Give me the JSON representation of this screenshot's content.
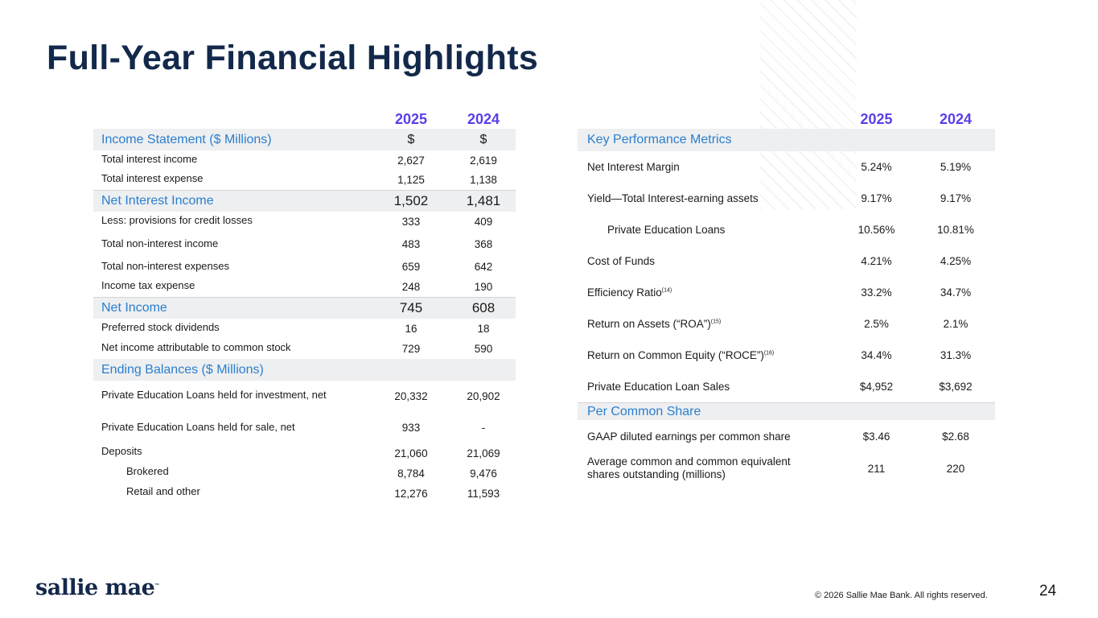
{
  "title": "Full-Year Financial Highlights",
  "years": [
    "2025",
    "2024"
  ],
  "income_statement": {
    "section_header": "Income Statement ($ Millions)",
    "currency": [
      "$",
      "$"
    ],
    "rows": [
      {
        "label": "Total interest income",
        "v2025": "2,627",
        "v2024": "2,619"
      },
      {
        "label": "Total interest expense",
        "v2025": "1,125",
        "v2024": "1,138"
      },
      {
        "label": "Net Interest Income",
        "v2025": "1,502",
        "v2024": "1,481"
      },
      {
        "label": "Less: provisions for credit losses",
        "v2025": "333",
        "v2024": "409"
      },
      {
        "label": "Total non-interest income",
        "v2025": "483",
        "v2024": "368"
      },
      {
        "label": "Total non-interest expenses",
        "v2025": "659",
        "v2024": "642"
      },
      {
        "label": "Income tax expense",
        "v2025": "248",
        "v2024": "190"
      },
      {
        "label": "Net Income",
        "v2025": "745",
        "v2024": "608"
      },
      {
        "label": "Preferred stock dividends",
        "v2025": "16",
        "v2024": "18"
      },
      {
        "label": "Net income attributable to common stock",
        "v2025": "729",
        "v2024": "590"
      }
    ]
  },
  "ending_balances": {
    "section_header": "Ending Balances ($ Millions)",
    "rows": [
      {
        "label": "Private Education Loans held for investment, net",
        "v2025": "20,332",
        "v2024": "20,902"
      },
      {
        "label": "Private Education Loans held for sale, net",
        "v2025": "933",
        "v2024": "-"
      },
      {
        "label": "Deposits",
        "v2025": "21,060",
        "v2024": "21,069"
      },
      {
        "label": "Brokered",
        "v2025": "8,784",
        "v2024": "9,476"
      },
      {
        "label": "Retail and other",
        "v2025": "12,276",
        "v2024": "11,593"
      }
    ]
  },
  "key_metrics": {
    "section_header": "Key Performance Metrics",
    "rows": [
      {
        "label": "Net Interest Margin",
        "sup": "",
        "v2025": "5.24%",
        "v2024": "5.19%"
      },
      {
        "label": "Yield—Total Interest-earning assets",
        "sup": "",
        "v2025": "9.17%",
        "v2024": "9.17%"
      },
      {
        "label": "Private Education Loans",
        "sup": "",
        "v2025": "10.56%",
        "v2024": "10.81%"
      },
      {
        "label": "Cost of Funds",
        "sup": "",
        "v2025": "4.21%",
        "v2024": "4.25%"
      },
      {
        "label": "Efficiency Ratio",
        "sup": "(14)",
        "v2025": "33.2%",
        "v2024": "34.7%"
      },
      {
        "label": "Return on Assets (“ROA”)",
        "sup": "(15)",
        "v2025": "2.5%",
        "v2024": "2.1%"
      },
      {
        "label": "Return on Common Equity (“ROCE”)",
        "sup": "(16)",
        "v2025": "34.4%",
        "v2024": "31.3%"
      },
      {
        "label": "Private Education Loan Sales",
        "sup": "",
        "v2025": "$4,952",
        "v2024": "$3,692"
      }
    ]
  },
  "per_common_share": {
    "section_header": "Per Common Share",
    "rows": [
      {
        "label": "GAAP diluted earnings per common share",
        "v2025": "$3.46",
        "v2024": "$2.68"
      },
      {
        "label": "Average common and common equivalent shares outstanding (millions)",
        "v2025": "211",
        "v2024": "220"
      }
    ]
  },
  "footer": {
    "logo_text": "sallie mae",
    "logo_tm": "™",
    "copyright": "© 2026 Sallie Mae Bank. All rights reserved.",
    "page_number": "24"
  }
}
